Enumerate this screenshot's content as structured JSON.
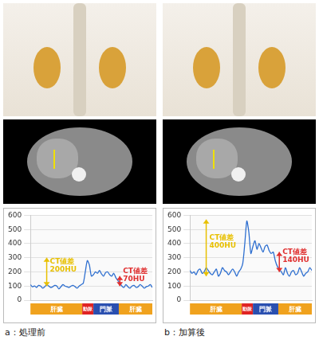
{
  "captions": [
    "a：処理前",
    "b：加算後"
  ],
  "chart_data": [
    {
      "type": "line",
      "x": [
        0,
        1,
        2,
        3,
        4,
        5,
        6,
        7,
        8,
        9,
        10,
        11,
        12,
        13,
        14,
        15,
        16,
        17,
        18,
        19,
        20,
        21,
        22,
        23,
        24,
        25,
        26,
        27,
        28,
        29,
        30,
        31,
        32,
        33,
        34,
        35,
        36,
        37,
        38,
        39,
        40,
        41,
        42,
        43,
        44,
        45,
        46,
        47,
        48,
        49,
        50,
        51,
        52,
        53,
        54,
        55,
        56,
        57,
        58,
        59,
        60
      ],
      "xlim": [
        0,
        60
      ],
      "ylim": [
        0,
        600
      ],
      "yticks": [
        0,
        100,
        200,
        300,
        400,
        500,
        600
      ],
      "grid": true,
      "tick_labels": "y",
      "series": [
        {
          "color": "#2e6fd0",
          "values": [
            110,
            95,
            100,
            90,
            105,
            100,
            85,
            95,
            110,
            100,
            90,
            95,
            105,
            100,
            80,
            95,
            110,
            100,
            95,
            90,
            100,
            105,
            95,
            85,
            100,
            110,
            120,
            200,
            280,
            250,
            170,
            180,
            200,
            190,
            210,
            185,
            170,
            195,
            200,
            180,
            170,
            190,
            160,
            140,
            120,
            100,
            90,
            110,
            95,
            85,
            100,
            105,
            90,
            95,
            110,
            100,
            85,
            95,
            100,
            110,
            90
          ]
        }
      ],
      "regions": [
        {
          "label": "肝臓",
          "from": 0,
          "to": 25.5,
          "color": "#f0a21e"
        },
        {
          "label": "動脈",
          "from": 25.5,
          "to": 31,
          "color": "#e02424"
        },
        {
          "label": "門脈",
          "from": 31,
          "to": 43.5,
          "color": "#2a4fb0"
        },
        {
          "label": "肝臓",
          "from": 43.5,
          "to": 60,
          "color": "#f0a21e"
        }
      ],
      "annotations": [
        {
          "text": [
            "CT値差",
            "200HU"
          ],
          "x": 8,
          "y_from": 100,
          "y_to": 300,
          "color": "#e8c000"
        },
        {
          "text": [
            "CT値差",
            "70HU"
          ],
          "x": 44,
          "y_from": 100,
          "y_to": 170,
          "color": "#e03030"
        }
      ]
    },
    {
      "type": "line",
      "x": [
        0,
        1,
        2,
        3,
        4,
        5,
        6,
        7,
        8,
        9,
        10,
        11,
        12,
        13,
        14,
        15,
        16,
        17,
        18,
        19,
        20,
        21,
        22,
        23,
        24,
        25,
        26,
        27,
        28,
        29,
        30,
        31,
        32,
        33,
        34,
        35,
        36,
        37,
        38,
        39,
        40,
        41,
        42,
        43,
        44,
        45,
        46,
        47,
        48,
        49,
        50,
        51,
        52,
        53,
        54,
        55,
        56,
        57,
        58,
        59,
        60
      ],
      "xlim": [
        0,
        60
      ],
      "ylim": [
        0,
        600
      ],
      "yticks": [
        0,
        100,
        200,
        300,
        400,
        500,
        600
      ],
      "grid": true,
      "tick_labels": "y",
      "series": [
        {
          "color": "#2e6fd0",
          "values": [
            210,
            190,
            200,
            180,
            210,
            220,
            190,
            200,
            230,
            210,
            190,
            180,
            200,
            220,
            170,
            190,
            230,
            210,
            200,
            180,
            200,
            220,
            200,
            170,
            200,
            220,
            260,
            400,
            560,
            480,
            330,
            380,
            420,
            360,
            400,
            370,
            340,
            380,
            390,
            350,
            330,
            340,
            280,
            240,
            220,
            200,
            180,
            230,
            190,
            170,
            200,
            210,
            180,
            190,
            230,
            200,
            170,
            190,
            200,
            230,
            210
          ]
        }
      ],
      "regions": [
        {
          "label": "肝臓",
          "from": 0,
          "to": 25.5,
          "color": "#f0a21e"
        },
        {
          "label": "動脈",
          "from": 25.5,
          "to": 31,
          "color": "#e02424"
        },
        {
          "label": "門脈",
          "from": 31,
          "to": 43.5,
          "color": "#2a4fb0"
        },
        {
          "label": "肝臓",
          "from": 43.5,
          "to": 60,
          "color": "#f0a21e"
        }
      ],
      "annotations": [
        {
          "text": [
            "CT値差",
            "400HU"
          ],
          "x": 8,
          "y_from": 170,
          "y_to": 570,
          "color": "#e8c000"
        },
        {
          "text": [
            "CT値差",
            "140HU"
          ],
          "x": 44,
          "y_from": 200,
          "y_to": 340,
          "color": "#e03030"
        }
      ]
    }
  ]
}
